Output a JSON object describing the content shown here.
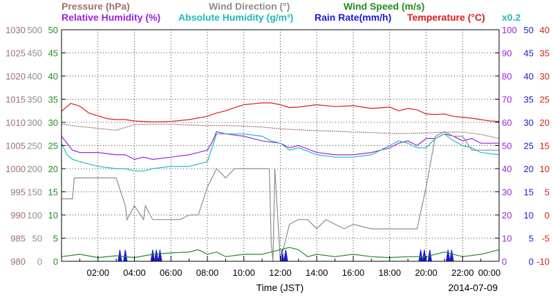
{
  "chart_data": {
    "type": "line",
    "date": "2014-07-09",
    "xlabel": "Time (JST)",
    "x_ticks": [
      "02:00",
      "04:00",
      "06:00",
      "08:00",
      "10:00",
      "12:00",
      "14:00",
      "16:00",
      "18:00",
      "20:00",
      "22:00",
      "00:00"
    ],
    "xlim": [
      0,
      24
    ],
    "grid": true,
    "legend_rows": [
      [
        {
          "name": "Pressure (hPa)",
          "color": "#a0706a"
        },
        {
          "name": "Wind Direction (°)",
          "color": "#8c8c8c"
        },
        {
          "name": "Wind Speed (m/s)",
          "color": "#1e8c1e"
        }
      ],
      [
        {
          "name": "Relative Humidity (%)",
          "color": "#9a22e0"
        },
        {
          "name": "Absolute Humidity (g/m³)",
          "color": "#22b8b8"
        },
        {
          "name": "Rain Rate(mm/h)",
          "color": "#1a1ad8"
        },
        {
          "name": "Temperature (°C)",
          "color": "#e01818"
        }
      ]
    ],
    "rain_multiplier": "x0.2",
    "axes": {
      "pressure": {
        "color": "#a0706a",
        "ticks": [
          "980",
          "985",
          "990",
          "995",
          "1000",
          "1005",
          "1010",
          "1015",
          "1020",
          "1025",
          "1030"
        ],
        "ylim": [
          980,
          1030
        ]
      },
      "wind_direction": {
        "color": "#8c8c8c",
        "ticks": [
          "0",
          "50",
          "100",
          "150",
          "200",
          "250",
          "300",
          "350",
          "400",
          "450",
          "500"
        ],
        "ylim": [
          0,
          500
        ]
      },
      "wind_speed": {
        "color": "#1e8c1e",
        "ticks": [
          "0",
          "5",
          "10",
          "15",
          "20",
          "25",
          "30",
          "35",
          "40",
          "45",
          "50"
        ],
        "ylim": [
          0,
          50
        ]
      },
      "humidity": {
        "color": "#9a22e0",
        "ticks": [
          "0",
          "10",
          "20",
          "30",
          "40",
          "50",
          "60",
          "70",
          "80",
          "90",
          "100"
        ],
        "ylim": [
          0,
          100
        ]
      },
      "rain_rate": {
        "color": "#1a1ad8",
        "ticks": [
          "0",
          "5",
          "10",
          "15",
          "20",
          "25",
          "30",
          "35",
          "40",
          "45",
          "50"
        ],
        "ylim": [
          0,
          50
        ]
      },
      "temperature": {
        "color": "#e01818",
        "ticks": [
          "-10",
          "-5",
          "0",
          "5",
          "10",
          "15",
          "20",
          "25",
          "30",
          "35",
          "40"
        ],
        "ylim": [
          -10,
          40
        ]
      }
    },
    "series": [
      {
        "name": "Temperature (°C)",
        "axis": "temperature",
        "color": "#e01818",
        "x": [
          0,
          0.5,
          1,
          1.5,
          2,
          2.5,
          3,
          3.5,
          4,
          5,
          6,
          7,
          8,
          8.5,
          9,
          9.5,
          10,
          10.5,
          11,
          11.5,
          12,
          12.5,
          13,
          14,
          15,
          16,
          17,
          18,
          18.5,
          19,
          19.5,
          20,
          20.5,
          21,
          21.5,
          22,
          22.5,
          23,
          23.5,
          24
        ],
        "y": [
          22.4,
          24.1,
          23.5,
          22.0,
          21.4,
          20.8,
          20.6,
          20.6,
          20.3,
          20.1,
          20.2,
          20.6,
          21.3,
          22.0,
          22.5,
          23.2,
          23.8,
          24.0,
          24.2,
          24.2,
          23.8,
          23.2,
          23.3,
          23.8,
          23.4,
          23.6,
          23.0,
          23.3,
          22.5,
          23.0,
          22.7,
          21.8,
          21.7,
          21.8,
          21.3,
          21.1,
          20.9,
          20.6,
          20.3,
          20.2
        ]
      },
      {
        "name": "Relative Humidity (%)",
        "axis": "humidity",
        "color": "#9a22e0",
        "x": [
          0,
          0.3,
          0.6,
          1,
          2,
          3,
          3.5,
          4,
          4.5,
          5,
          6,
          7,
          7.5,
          8,
          8.3,
          8.5,
          9,
          10,
          11,
          12,
          12.5,
          13,
          14,
          15,
          16,
          17,
          17.5,
          18,
          18.5,
          19,
          19.5,
          20,
          20.5,
          21,
          21.5,
          22,
          22.5,
          23,
          24
        ],
        "y": [
          54,
          51,
          48,
          47,
          47,
          46,
          46,
          44,
          45,
          44,
          45,
          46,
          47,
          48,
          52,
          56,
          55,
          54,
          52,
          51,
          49,
          50,
          47,
          46,
          46,
          47,
          48,
          49,
          51,
          52,
          50,
          53,
          53,
          55,
          54,
          52,
          53,
          51,
          51
        ]
      },
      {
        "name": "Absolute Humidity (g/m³)",
        "axis": "humidity",
        "color": "#22b8b8",
        "x": [
          0,
          0.3,
          0.6,
          1,
          1.5,
          2,
          3,
          3.5,
          4,
          4.5,
          5,
          6,
          7,
          7.5,
          8,
          8.3,
          8.5,
          9,
          10,
          11,
          11.5,
          12,
          12.5,
          13,
          14,
          15,
          16,
          17,
          17.5,
          18,
          18.5,
          19,
          19.5,
          20,
          20.5,
          21,
          21.5,
          22,
          22.5,
          23,
          24
        ],
        "y": [
          51,
          46,
          44,
          43,
          42,
          41,
          40,
          40,
          39,
          39,
          40,
          41,
          41,
          42,
          43,
          50,
          55,
          55,
          55,
          54,
          52,
          51,
          48,
          49,
          46,
          45,
          45,
          46,
          48,
          50,
          52,
          51,
          49,
          49,
          53,
          55,
          52,
          50,
          49,
          47,
          46
        ]
      },
      {
        "name": "Rain Rate(mm/h)",
        "axis": "rain_rate",
        "color": "#1a1ad8",
        "x": [
          0,
          3.1,
          3.2,
          3.3,
          3.4,
          3.5,
          3.6,
          3.7,
          4.9,
          5.0,
          5.1,
          5.2,
          5.3,
          5.4,
          5.5,
          5.6,
          11.9,
          12.0,
          12.1,
          12.2,
          12.3,
          12.4,
          12.5,
          12.6,
          19.6,
          19.7,
          19.8,
          19.9,
          20.0,
          20.1,
          20.2,
          20.3,
          20.4,
          20.5,
          21.1,
          21.2,
          21.3,
          21.4,
          21.5,
          24
        ],
        "y": [
          0,
          0,
          2.5,
          0,
          0,
          2.5,
          0,
          0,
          0,
          2.5,
          0,
          2.5,
          0,
          2.5,
          0,
          0,
          0,
          0,
          2.5,
          0,
          2.5,
          0,
          0,
          0,
          0,
          2.5,
          0,
          2.5,
          0,
          0,
          2.5,
          0,
          0,
          0,
          0,
          2.5,
          0,
          2.5,
          0,
          0
        ]
      },
      {
        "name": "Pressure (hPa)",
        "axis": "pressure",
        "color": "#a0706a",
        "x": [
          0,
          1,
          2,
          3,
          4,
          5,
          6,
          7,
          8,
          9,
          10,
          11,
          12,
          13,
          14,
          15,
          16,
          17,
          18,
          19,
          20,
          21,
          22,
          23,
          24
        ],
        "y": [
          1009.6,
          1009.1,
          1008.7,
          1008.3,
          1009.5,
          1009.6,
          1009.6,
          1009.4,
          1009.3,
          1009.3,
          1009.2,
          1009.0,
          1008.6,
          1008.4,
          1008.2,
          1008.1,
          1007.9,
          1007.8,
          1007.6,
          1007.6,
          1007.7,
          1007.9,
          1007.9,
          1007.4,
          1006.5
        ]
      },
      {
        "name": "Wind Direction (°)",
        "axis": "wind_direction",
        "color": "#8c8c8c",
        "x": [
          0,
          0.6,
          0.7,
          1.5,
          2,
          3,
          3.5,
          3.6,
          4,
          4.5,
          4.6,
          5,
          5.5,
          6,
          6.5,
          7,
          7.5,
          8,
          8.5,
          9,
          9.5,
          10,
          10.5,
          11,
          11.4,
          11.5,
          11.6,
          11.7,
          12,
          12.5,
          13,
          13.5,
          14,
          14.5,
          15,
          15.5,
          16,
          17,
          18,
          19,
          19.5,
          20,
          20.5,
          21,
          21.5,
          22,
          22.5,
          23,
          24
        ],
        "y": [
          135,
          135,
          180,
          180,
          180,
          180,
          120,
          90,
          120,
          90,
          120,
          90,
          90,
          90,
          90,
          100,
          100,
          160,
          200,
          180,
          200,
          200,
          200,
          200,
          200,
          40,
          0,
          200,
          0,
          80,
          90,
          90,
          70,
          90,
          80,
          70,
          80,
          70,
          70,
          70,
          70,
          160,
          270,
          280,
          270,
          270,
          240,
          240,
          240
        ]
      },
      {
        "name": "Wind Speed (m/s)",
        "axis": "wind_speed",
        "color": "#1e8c1e",
        "x": [
          0,
          1,
          2,
          3,
          4,
          5,
          6,
          7,
          7.5,
          8,
          8.5,
          9,
          10,
          11,
          11.5,
          12,
          12.5,
          13,
          13.5,
          14,
          15,
          16,
          17,
          18,
          19,
          20,
          20.5,
          21,
          21.5,
          22,
          23,
          24
        ],
        "y": [
          1.0,
          1.5,
          0.8,
          1.2,
          0.8,
          1.5,
          1.8,
          2.0,
          2.5,
          1.5,
          2.0,
          1.0,
          1.5,
          1.5,
          2.0,
          2.5,
          3.0,
          2.5,
          1.0,
          1.5,
          1.0,
          1.5,
          1.0,
          0.8,
          1.0,
          1.0,
          1.5,
          2.0,
          1.5,
          1.0,
          1.5,
          2.5
        ]
      }
    ]
  }
}
